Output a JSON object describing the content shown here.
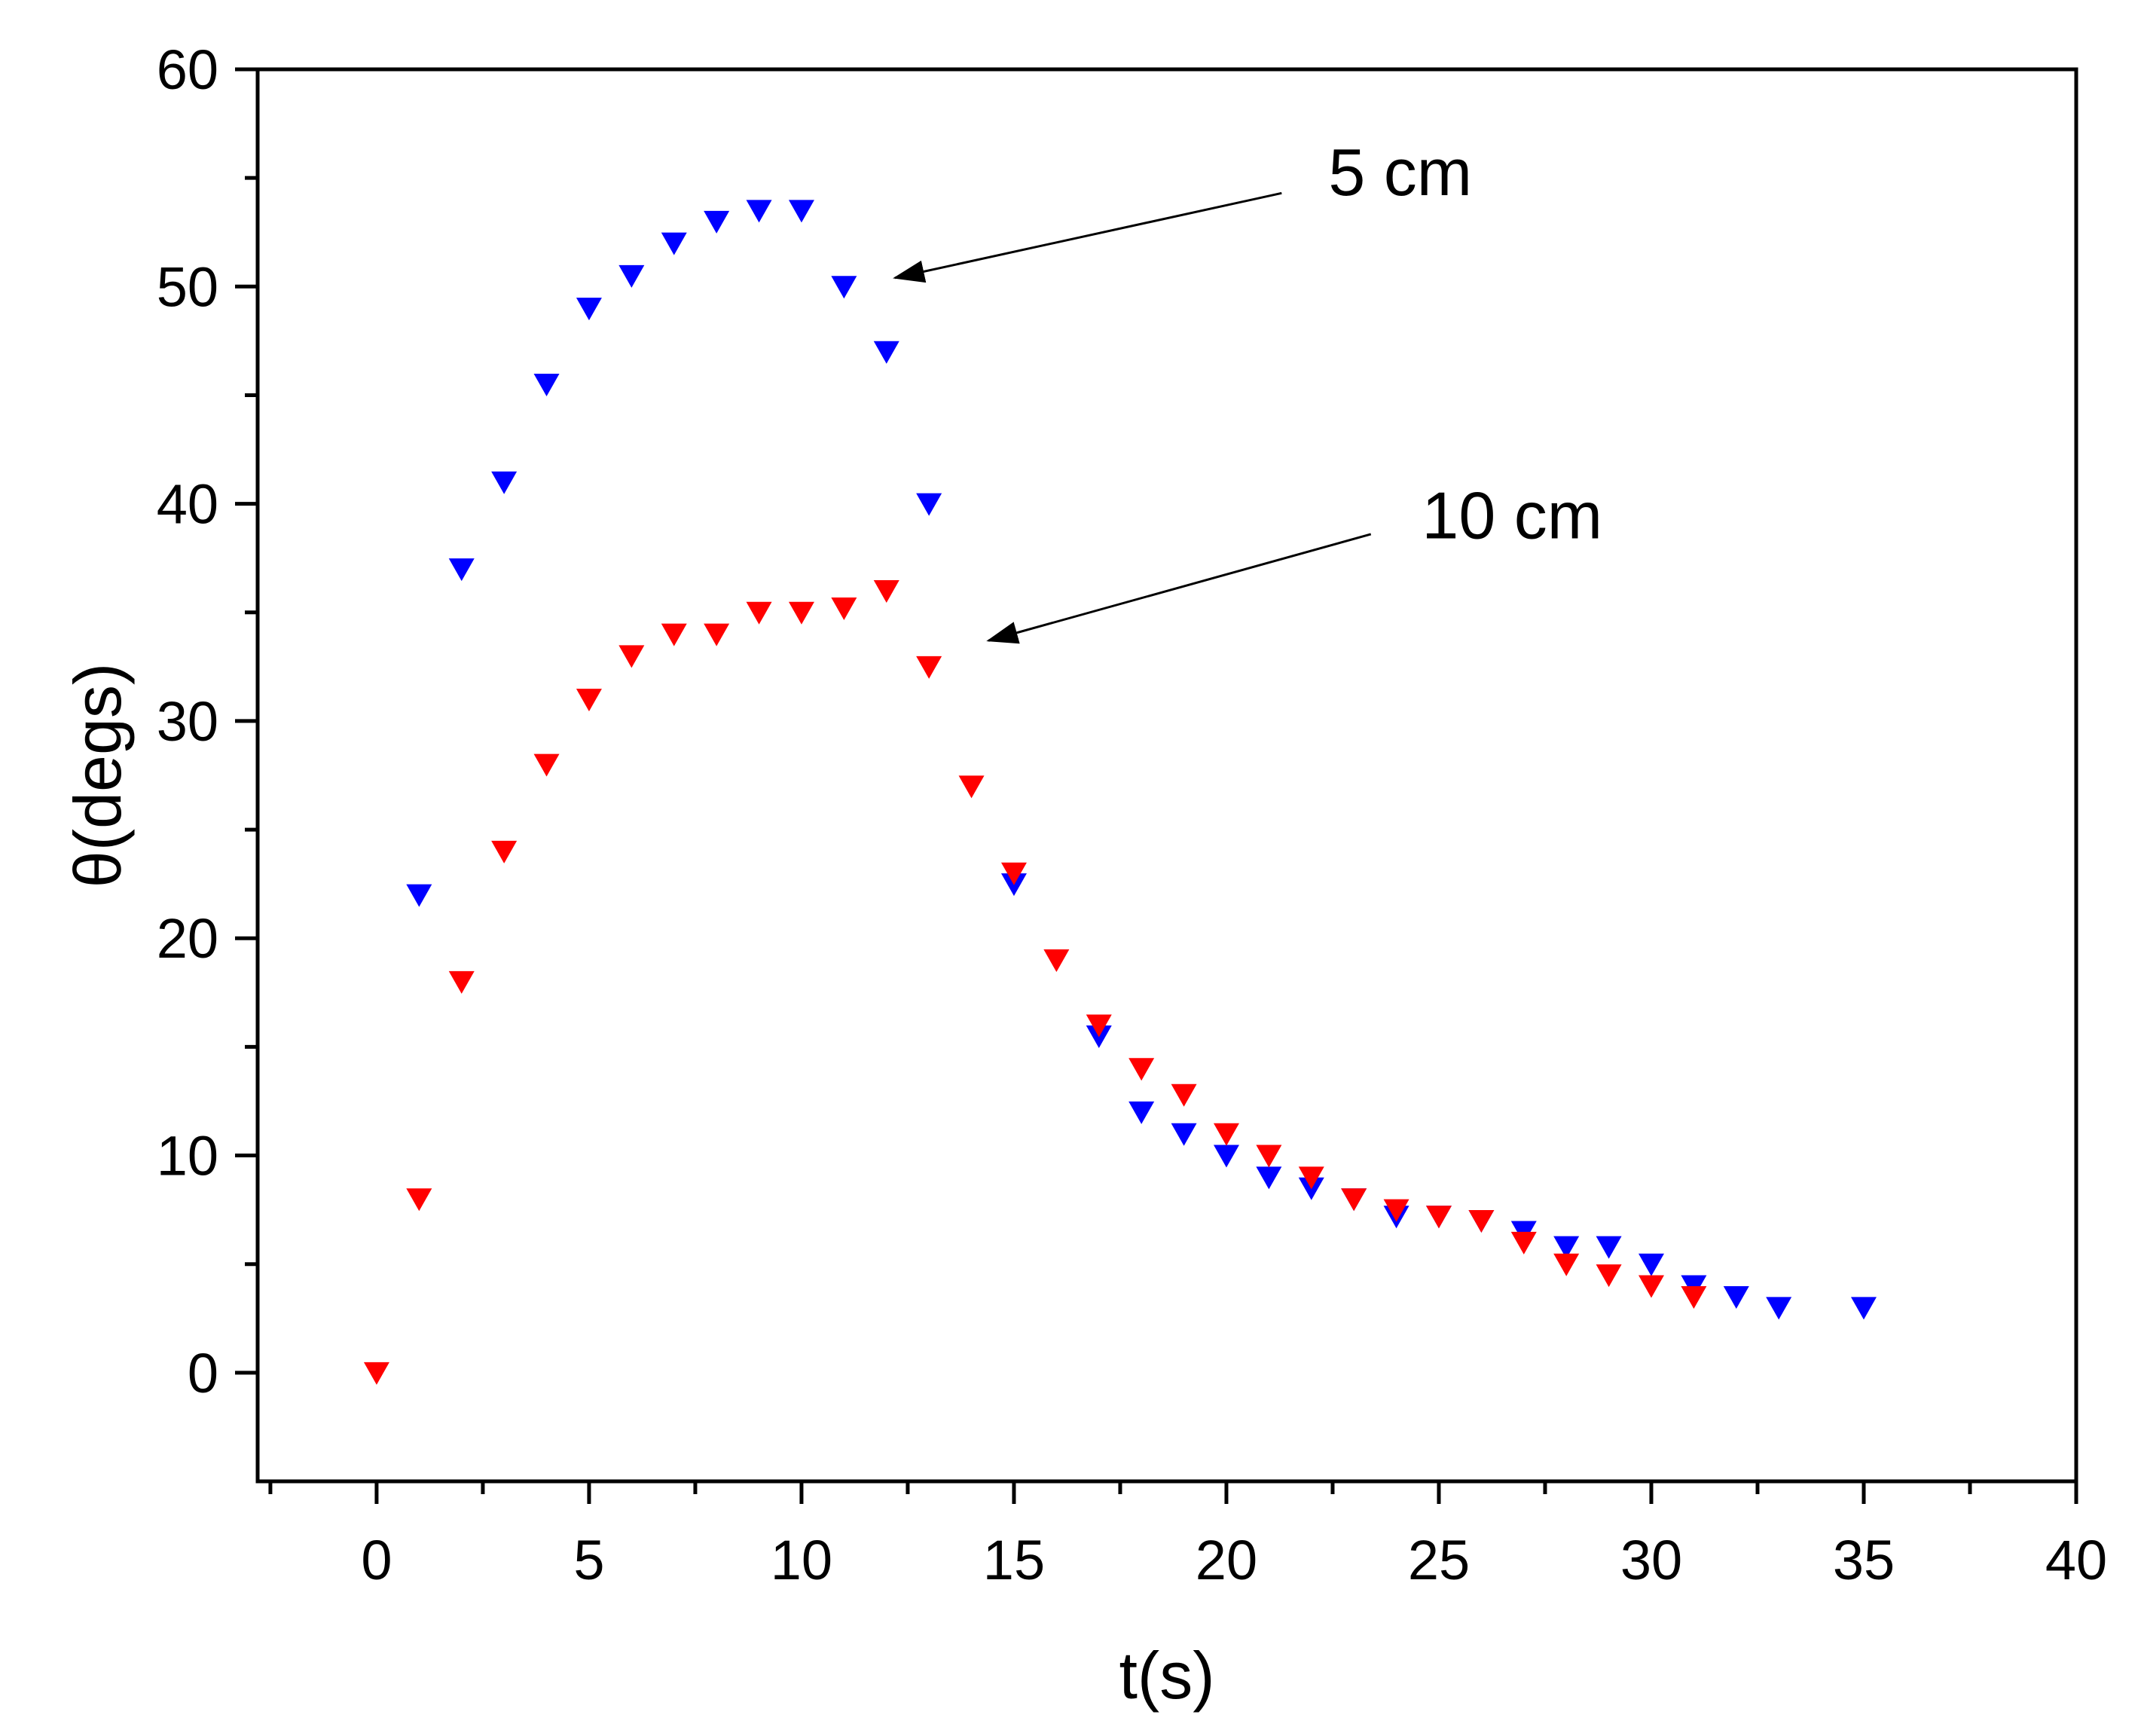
{
  "chart_data": {
    "type": "scatter",
    "title": "",
    "xlabel": "t(s)",
    "ylabel": "θ(degs)",
    "xlim": [
      -2.8,
      40
    ],
    "ylim": [
      -5,
      60
    ],
    "xticks": [
      0,
      5,
      10,
      15,
      20,
      25,
      30,
      35,
      40
    ],
    "yticks": [
      0,
      10,
      20,
      30,
      40,
      50,
      60
    ],
    "xtick_labels": [
      "0",
      "5",
      "10",
      "15",
      "20",
      "25",
      "30",
      "35",
      "40"
    ],
    "ytick_labels": [
      "0",
      "10",
      "20",
      "30",
      "40",
      "50",
      "60"
    ],
    "x_minor_step": 2.5,
    "y_minor_step": 5,
    "grid": false,
    "marker": "down-triangle",
    "series": [
      {
        "name": "5 cm",
        "color": "#0000ff",
        "x": [
          1,
          2,
          3,
          4,
          5,
          6,
          7,
          8,
          9,
          10,
          11,
          12,
          13,
          15,
          17,
          18,
          19,
          20,
          21,
          22,
          23,
          24,
          25,
          26,
          27,
          28,
          29,
          30,
          31,
          32,
          33,
          35
        ],
        "y": [
          22,
          37,
          41,
          45.5,
          49,
          50.5,
          52,
          53,
          53.5,
          53.5,
          50,
          47,
          40,
          22.5,
          15.5,
          12,
          11,
          10,
          9,
          8.5,
          8,
          7.2,
          7.2,
          7,
          6.5,
          5.8,
          5.8,
          5,
          4,
          3.5,
          3,
          3
        ]
      },
      {
        "name": "10 cm",
        "color": "#ff0000",
        "x": [
          0,
          1,
          2,
          3,
          4,
          5,
          6,
          7,
          8,
          9,
          10,
          11,
          12,
          13,
          14,
          15,
          16,
          17,
          18,
          19,
          20,
          21,
          22,
          23,
          24,
          25,
          26,
          27,
          28,
          29,
          30,
          31
        ],
        "y": [
          0,
          8,
          18,
          24,
          28,
          31,
          33,
          34,
          34,
          35,
          35,
          35.2,
          36,
          32.5,
          27,
          23,
          19,
          16,
          14,
          12.8,
          11,
          10,
          9,
          8,
          7.5,
          7.2,
          7,
          6,
          5,
          4.5,
          4,
          3.5
        ]
      }
    ],
    "annotations": [
      {
        "text": "5 cm",
        "series": "5 cm",
        "text_at": [
          22.4,
          54.2
        ],
        "arrow_from": [
          21.3,
          54.3
        ],
        "arrow_to": [
          12.2,
          50.4
        ]
      },
      {
        "text": "10 cm",
        "series": "10 cm",
        "text_at": [
          24.6,
          38.4
        ],
        "arrow_from": [
          23.4,
          38.6
        ],
        "arrow_to": [
          14.4,
          33.7
        ]
      }
    ]
  }
}
